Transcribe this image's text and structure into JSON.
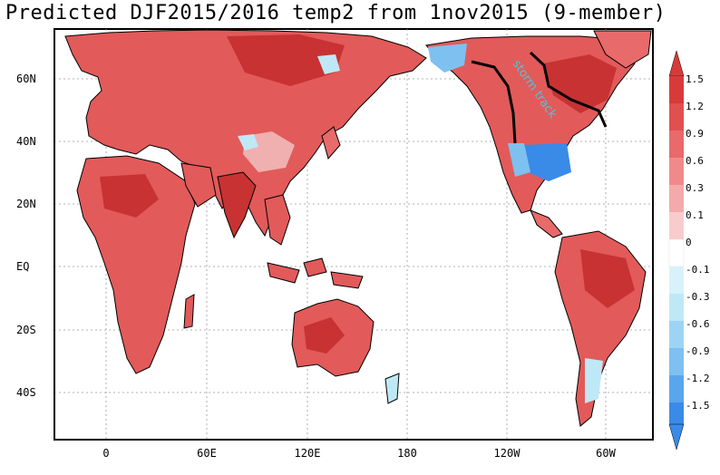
{
  "title": "Predicted DJF2015/2016 temp2 from 1nov2015 (9-member)",
  "map": {
    "lat_labels": [
      "60N",
      "40N",
      "20N",
      "EQ",
      "20S",
      "40S"
    ],
    "lon_labels": [
      "0",
      "60E",
      "120E",
      "180",
      "120W",
      "60W"
    ],
    "anomaly_scale": [
      "1.5",
      "1.2",
      "0.9",
      "0.6",
      "0.3",
      "0.1",
      "0",
      "-0.1",
      "-0.3",
      "-0.6",
      "-0.9",
      "-1.2",
      "-1.5"
    ],
    "jet_annotation": "storm track",
    "colors": {
      "warm_strong": "#d83a3a",
      "warm_mid": "#e86a6a",
      "warm_light": "#f4aaaa",
      "neutral": "#ffffff",
      "cool_light": "#bfe8f6",
      "cool_mid": "#7ec0ef",
      "cool_strong": "#3a8ae8"
    }
  }
}
